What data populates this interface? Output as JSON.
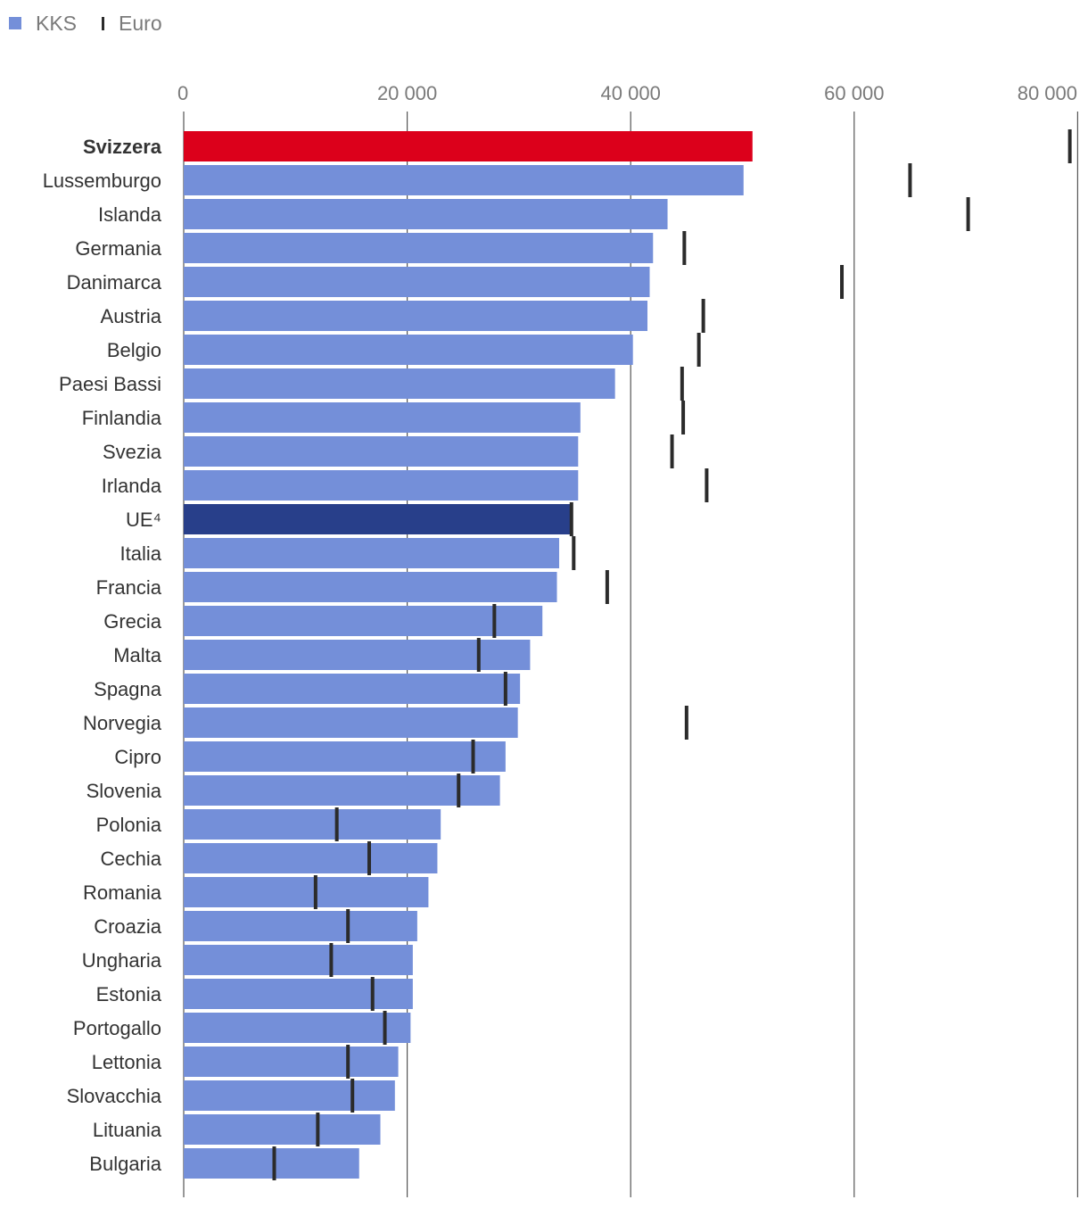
{
  "legend": {
    "kks_label": "KKS",
    "euro_label": "Euro"
  },
  "colors": {
    "kks": "#748fd9",
    "highlight_switzerland": "#dc001b",
    "highlight_eu": "#283f8a",
    "euro_marker": "#2b2b2b",
    "grid": "#555555"
  },
  "chart_data": {
    "type": "bar",
    "orientation": "horizontal",
    "title": "",
    "xlabel": "",
    "ylabel": "",
    "xlim": [
      0,
      80000
    ],
    "ticks": [
      {
        "value": 0,
        "label": "0"
      },
      {
        "value": 20000,
        "label": "20 000"
      },
      {
        "value": 40000,
        "label": "40 000"
      },
      {
        "value": 60000,
        "label": "60 000"
      },
      {
        "value": 80000,
        "label": "80 000"
      }
    ],
    "categories": [
      "Svizzera",
      "Lussemburgo",
      "Islanda",
      "Germania",
      "Danimarca",
      "Austria",
      "Belgio",
      "Paesi Bassi",
      "Finlandia",
      "Svezia",
      "Irlanda",
      "UE⁴",
      "Italia",
      "Francia",
      "Grecia",
      "Malta",
      "Spagna",
      "Norvegia",
      "Cipro",
      "Slovenia",
      "Polonia",
      "Cechia",
      "Romania",
      "Croazia",
      "Ungharia",
      "Estonia",
      "Portogallo",
      "Lettonia",
      "Slovacchia",
      "Lituania",
      "Bulgaria"
    ],
    "bold_categories": [
      "Svizzera"
    ],
    "highlight": {
      "Svizzera": "highlight_switzerland",
      "UE⁴": "highlight_eu"
    },
    "series": [
      {
        "name": "KKS",
        "kind": "bar",
        "values": [
          50900,
          50100,
          43300,
          42000,
          41700,
          41500,
          40200,
          38600,
          35500,
          35300,
          35300,
          34700,
          33600,
          33400,
          32100,
          31000,
          30100,
          29900,
          28800,
          28300,
          23000,
          22700,
          21900,
          20900,
          20500,
          20500,
          20300,
          19200,
          18900,
          17600,
          15700
        ]
      },
      {
        "name": "Euro",
        "kind": "marker",
        "values": [
          79300,
          65000,
          70200,
          44800,
          58900,
          46500,
          46100,
          44600,
          44700,
          43700,
          46800,
          34700,
          34900,
          37900,
          27800,
          26400,
          28800,
          45000,
          25900,
          24600,
          13700,
          16600,
          11800,
          14700,
          13200,
          16900,
          18000,
          14700,
          15100,
          12000,
          8100
        ]
      }
    ]
  }
}
